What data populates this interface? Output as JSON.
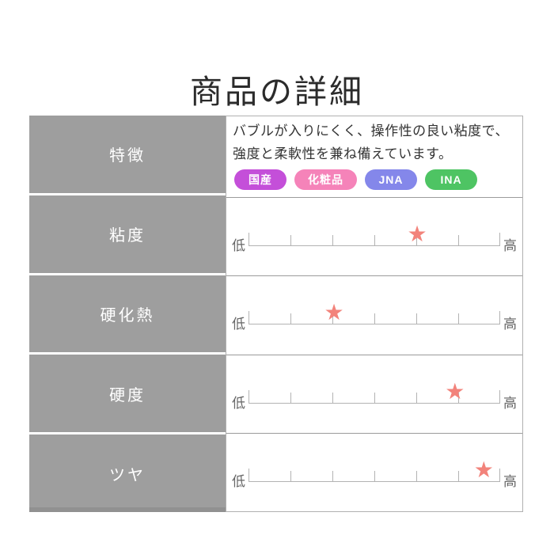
{
  "page_title": "商品の詳細",
  "colors": {
    "label_cell_bg": "#9e9e9e",
    "label_text": "#ffffff",
    "star": "#f2837b",
    "scale_line": "#b3b3b3",
    "row_divider": "#9b9b9b",
    "outer_border": "#b0b0b0",
    "body_text": "#333333"
  },
  "icons": {
    "star": "★"
  },
  "table": {
    "rows": [
      {
        "label": "特徴"
      },
      {
        "label": "粘度"
      },
      {
        "label": "硬化熱"
      },
      {
        "label": "硬度"
      },
      {
        "label": "ツヤ"
      }
    ]
  },
  "feature": {
    "description": "バブルが入りにくく、操作性の良い粘度で、強度と柔軟性を兼ね備えています。",
    "badges": [
      {
        "label": "国産",
        "color": "#c44fd9"
      },
      {
        "label": "化粧品",
        "color": "#f583b9"
      },
      {
        "label": "JNA",
        "color": "#8487ea"
      },
      {
        "label": "INA",
        "color": "#4ec463"
      }
    ]
  },
  "scales": [
    {
      "name": "粘度",
      "low_label": "低",
      "high_label": "高",
      "tick_count": 7,
      "rating_percent": 67,
      "star_left": "67%"
    },
    {
      "name": "硬化熱",
      "low_label": "低",
      "high_label": "高",
      "tick_count": 7,
      "rating_percent": 34,
      "star_left": "34%"
    },
    {
      "name": "硬度",
      "low_label": "低",
      "high_label": "高",
      "tick_count": 7,
      "rating_percent": 82,
      "star_left": "82%"
    },
    {
      "name": "ツヤ",
      "low_label": "低",
      "high_label": "高",
      "tick_count": 7,
      "rating_percent": 93.5,
      "star_left": "93.5%"
    }
  ]
}
